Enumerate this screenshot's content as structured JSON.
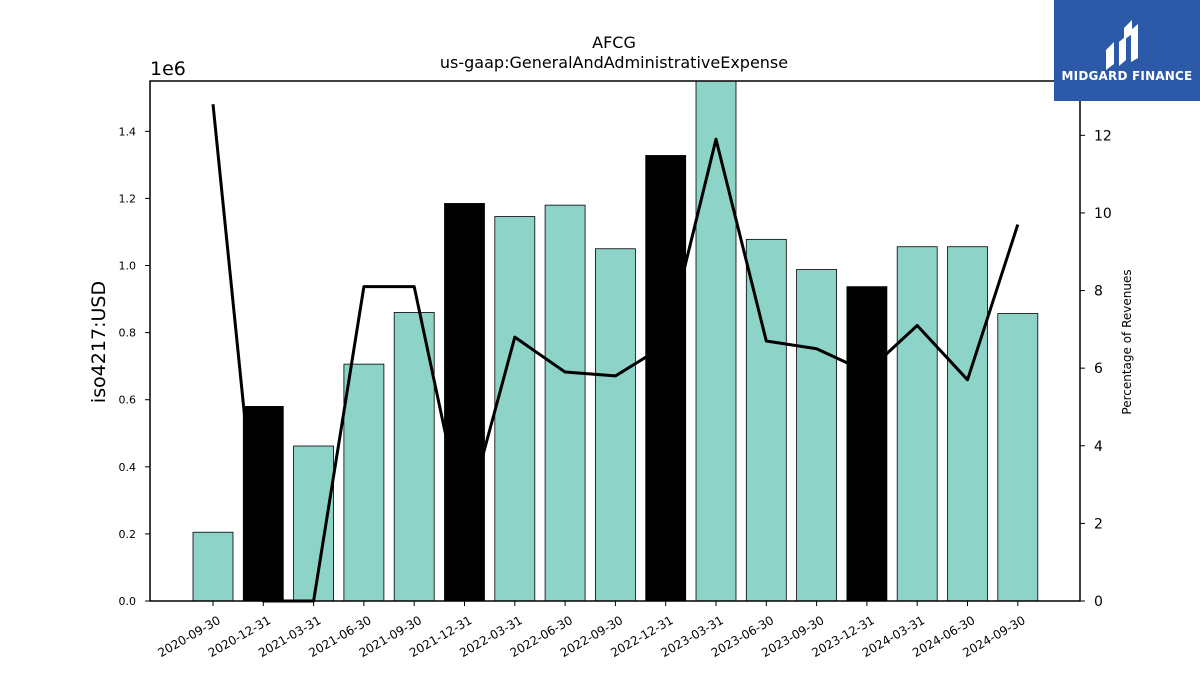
{
  "chart_data": {
    "type": "bar",
    "title": "AFCG",
    "subtitle": "us-gaap:GeneralAndAdministrativeExpense",
    "ylabel": "iso4217:USD",
    "y_offset_label": "1e6",
    "y2label": "Percentage of Revenues",
    "categories": [
      "2020-09-30",
      "2020-12-31",
      "2021-03-31",
      "2021-06-30",
      "2021-09-30",
      "2021-12-31",
      "2022-03-31",
      "2022-06-30",
      "2022-09-30",
      "2022-12-31",
      "2023-03-31",
      "2023-06-30",
      "2023-09-30",
      "2023-12-31",
      "2024-03-31",
      "2024-06-30",
      "2024-09-30"
    ],
    "values": [
      205000,
      580000,
      462000,
      706000,
      860000,
      1185000,
      1146000,
      1180000,
      1050000,
      1328000,
      1560000,
      1078000,
      988000,
      937000,
      1056000,
      1056000,
      857000
    ],
    "annual": [
      false,
      true,
      false,
      false,
      false,
      true,
      false,
      false,
      false,
      true,
      false,
      false,
      false,
      true,
      false,
      false,
      false
    ],
    "pct_revenue": [
      12.8,
      0,
      0,
      8.1,
      8.1,
      2.0,
      6.8,
      5.9,
      5.8,
      6.6,
      11.9,
      6.7,
      6.5,
      5.9,
      7.1,
      5.7,
      9.7
    ],
    "ylim": [
      0,
      1550000
    ],
    "y2lim": [
      0,
      13.4
    ],
    "yticks": [
      0.0,
      0.2,
      0.4,
      0.6,
      0.8,
      1.0,
      1.2,
      1.4
    ],
    "y2ticks": [
      0,
      2,
      4,
      6,
      8,
      10,
      12
    ],
    "colors": {
      "quarter_bar": "#8dd3c7",
      "annual_bar": "#000000",
      "line": "#000000"
    }
  },
  "logo": {
    "text": "MIDGARD FINANCE"
  }
}
